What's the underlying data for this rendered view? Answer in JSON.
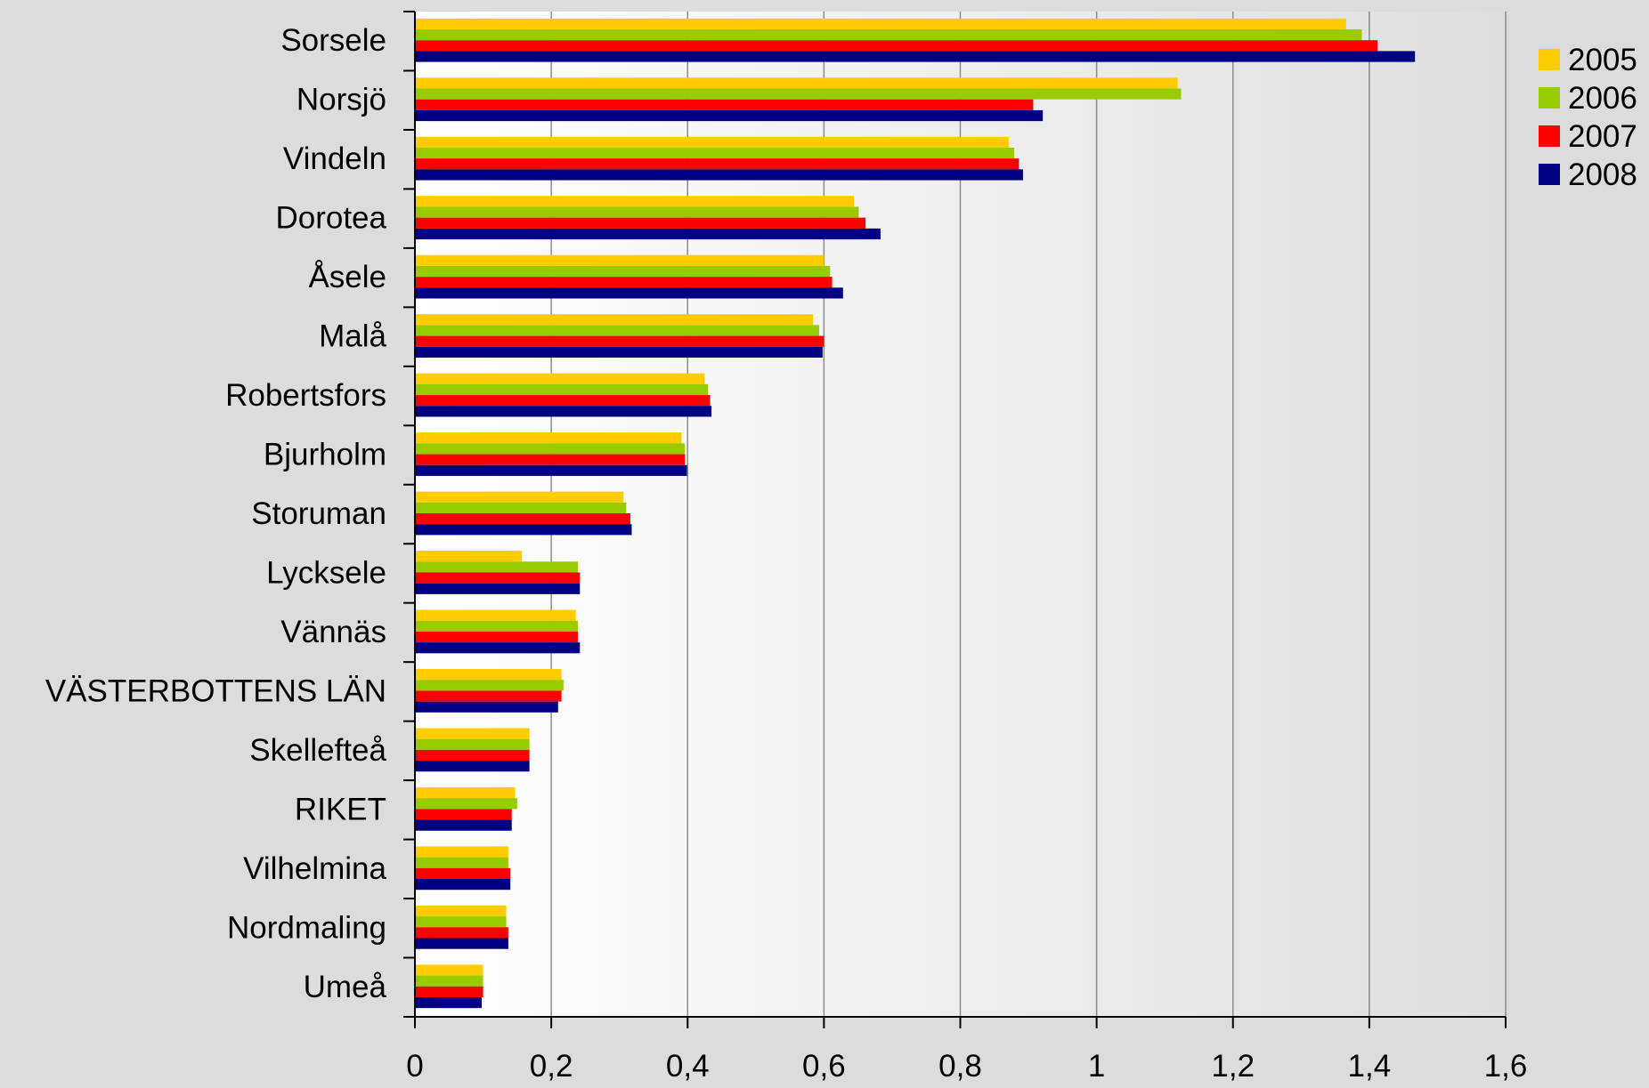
{
  "chart_data": {
    "type": "bar",
    "orientation": "horizontal",
    "title": "",
    "xlabel": "",
    "ylabel": "",
    "xlim": [
      0,
      1.6
    ],
    "x_ticks": [
      "0",
      "0,2",
      "0,4",
      "0,6",
      "0,8",
      "1",
      "1,2",
      "1,4",
      "1,6"
    ],
    "x_tick_values": [
      0,
      0.2,
      0.4,
      0.6,
      0.8,
      1.0,
      1.2,
      1.4,
      1.6
    ],
    "grid": "vertical",
    "legend_position": "right",
    "categories": [
      "Sorsele",
      "Norsjö",
      "Vindeln",
      "Dorotea",
      "Åsele",
      "Malå",
      "Robertsfors",
      "Bjurholm",
      "Storuman",
      "Lycksele",
      "Vännäs",
      "VÄSTERBOTTENS LÄN",
      "Skellefteå",
      "RIKET",
      "Vilhelmina",
      "Nordmaling",
      "Umeå"
    ],
    "series": [
      {
        "name": "2005",
        "color": "#ffcc00",
        "values": [
          1.366,
          1.119,
          0.871,
          0.644,
          0.6,
          0.584,
          0.425,
          0.391,
          0.306,
          0.157,
          0.236,
          0.215,
          0.168,
          0.147,
          0.137,
          0.134,
          0.1
        ]
      },
      {
        "name": "2006",
        "color": "#99cc00",
        "values": [
          1.389,
          1.124,
          0.879,
          0.651,
          0.609,
          0.593,
          0.43,
          0.396,
          0.31,
          0.239,
          0.239,
          0.218,
          0.168,
          0.15,
          0.137,
          0.134,
          0.1
        ]
      },
      {
        "name": "2007",
        "color": "#ff0000",
        "values": [
          1.412,
          0.907,
          0.886,
          0.661,
          0.612,
          0.6,
          0.433,
          0.396,
          0.316,
          0.242,
          0.239,
          0.215,
          0.168,
          0.142,
          0.14,
          0.137,
          0.1
        ]
      },
      {
        "name": "2008",
        "color": "#000080",
        "values": [
          1.467,
          0.921,
          0.892,
          0.683,
          0.628,
          0.598,
          0.435,
          0.399,
          0.318,
          0.242,
          0.242,
          0.21,
          0.168,
          0.142,
          0.14,
          0.137,
          0.098
        ]
      }
    ]
  }
}
